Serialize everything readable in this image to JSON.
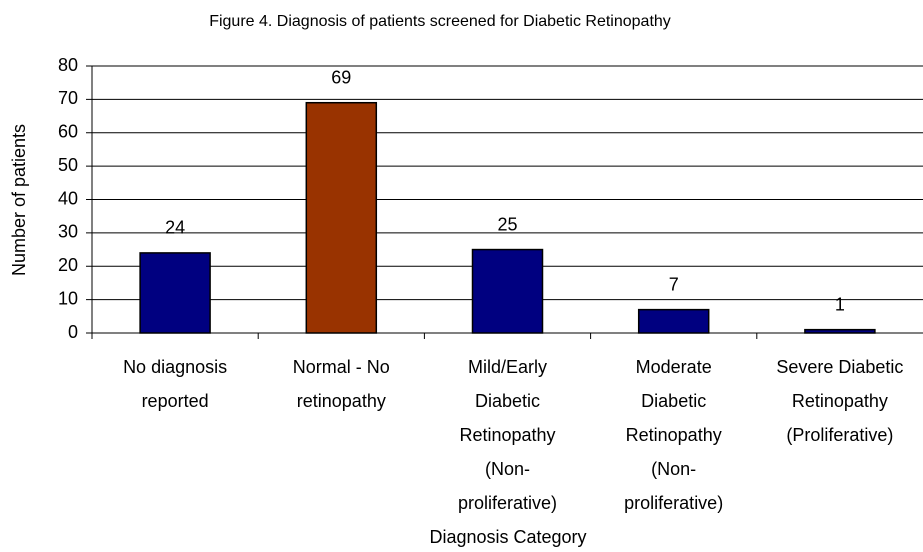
{
  "chart_data": {
    "type": "bar",
    "title": "Figure 4. Diagnosis of patients screened for Diabetic Retinopathy",
    "x_label": "Diagnosis Category",
    "y_label": "Number of patients",
    "categories": [
      "No diagnosis reported",
      "Normal - No retinopathy",
      "Mild/Early Diabetic Retinopathy (Non-proliferative)",
      "Moderate Diabetic Retinopathy (Non-proliferative)",
      "Severe Diabetic Retinopathy (Proliferative)"
    ],
    "values": [
      24,
      69,
      25,
      7,
      1
    ],
    "colors": [
      "#000080",
      "#993300",
      "#000080",
      "#000080",
      "#000080"
    ],
    "ylim": [
      0,
      80
    ],
    "yticks": [
      0,
      10,
      20,
      30,
      40,
      50,
      60,
      70,
      80
    ],
    "grid": true
  }
}
